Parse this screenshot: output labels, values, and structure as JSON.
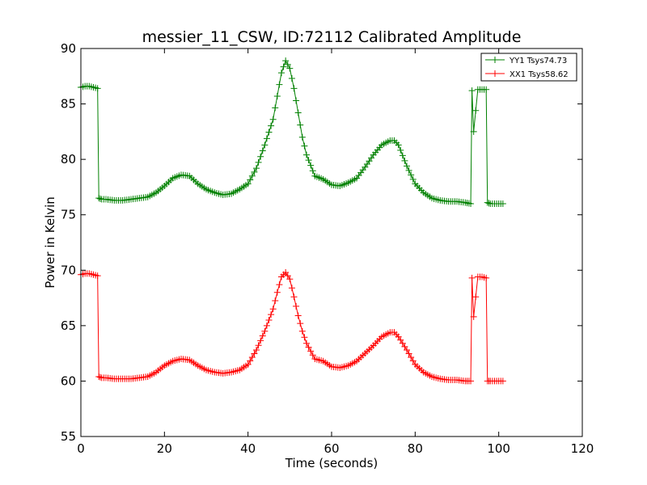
{
  "chart_data": {
    "type": "line",
    "title": "messier_11_CSW, ID:72112 Calibrated Amplitude",
    "xlabel": "Time (seconds)",
    "ylabel": "Power in Kelvin",
    "xlim": [
      0,
      120
    ],
    "ylim": [
      55,
      90
    ],
    "xticks": [
      0,
      20,
      40,
      60,
      80,
      100,
      120
    ],
    "yticks": [
      55,
      60,
      65,
      70,
      75,
      80,
      85,
      90
    ],
    "grid": false,
    "legend_position": "top-right",
    "marker": "+",
    "series": [
      {
        "name": "YY1 Tsys74.73",
        "color": "#008000",
        "x": [
          0,
          1,
          2,
          3,
          4,
          4.3,
          5,
          6,
          8,
          10,
          12,
          14,
          16,
          18,
          20,
          22,
          24,
          26,
          28,
          30,
          32,
          34,
          36,
          38,
          40,
          42,
          44,
          46,
          47,
          48,
          49,
          50,
          51,
          52,
          53,
          54,
          56,
          58,
          60,
          62,
          64,
          66,
          68,
          70,
          72,
          74,
          75,
          76,
          78,
          80,
          82,
          84,
          86,
          88,
          90,
          92,
          93.3,
          93.6,
          94,
          95,
          96,
          97,
          97.3,
          98,
          99,
          100,
          101
        ],
        "y": [
          86.5,
          86.6,
          86.6,
          86.5,
          86.4,
          76.5,
          76.4,
          76.4,
          76.3,
          76.3,
          76.4,
          76.5,
          76.6,
          77.0,
          77.6,
          78.3,
          78.6,
          78.5,
          77.8,
          77.3,
          77.0,
          76.8,
          76.9,
          77.3,
          77.8,
          79.2,
          81.3,
          83.6,
          85.7,
          87.8,
          88.9,
          88.2,
          86.4,
          84.2,
          82.0,
          80.4,
          78.5,
          78.2,
          77.7,
          77.6,
          77.9,
          78.3,
          79.3,
          80.4,
          81.3,
          81.7,
          81.7,
          81.3,
          79.4,
          77.8,
          77.0,
          76.5,
          76.3,
          76.2,
          76.2,
          76.1,
          76.0,
          86.2,
          82.5,
          86.3,
          86.3,
          86.3,
          76.1,
          76.0,
          76.0,
          76.0,
          76.0
        ]
      },
      {
        "name": "XX1 Tsys58.62",
        "color": "#ff0000",
        "x": [
          0,
          1,
          2,
          3,
          4,
          4.3,
          5,
          6,
          8,
          10,
          12,
          14,
          16,
          18,
          20,
          22,
          24,
          26,
          28,
          30,
          32,
          34,
          36,
          38,
          40,
          42,
          44,
          46,
          47,
          48,
          49,
          50,
          51,
          52,
          53,
          54,
          56,
          58,
          60,
          62,
          64,
          66,
          68,
          70,
          72,
          74,
          75,
          76,
          78,
          80,
          82,
          84,
          86,
          88,
          90,
          92,
          93.3,
          93.6,
          94,
          95,
          96,
          97,
          97.3,
          98,
          99,
          100,
          101
        ],
        "y": [
          69.6,
          69.7,
          69.7,
          69.6,
          69.5,
          60.4,
          60.3,
          60.3,
          60.2,
          60.2,
          60.2,
          60.3,
          60.4,
          60.8,
          61.4,
          61.8,
          62.0,
          61.9,
          61.4,
          61.0,
          60.8,
          60.7,
          60.8,
          61.0,
          61.5,
          62.8,
          64.5,
          66.5,
          68.0,
          69.4,
          69.8,
          69.2,
          67.6,
          65.9,
          64.5,
          63.4,
          62.0,
          61.8,
          61.3,
          61.2,
          61.4,
          61.8,
          62.5,
          63.2,
          64.0,
          64.4,
          64.4,
          64.0,
          62.8,
          61.5,
          60.8,
          60.4,
          60.2,
          60.1,
          60.1,
          60.0,
          60.0,
          69.3,
          65.8,
          69.4,
          69.4,
          69.3,
          60.0,
          60.0,
          60.0,
          60.0,
          60.0
        ]
      }
    ]
  }
}
